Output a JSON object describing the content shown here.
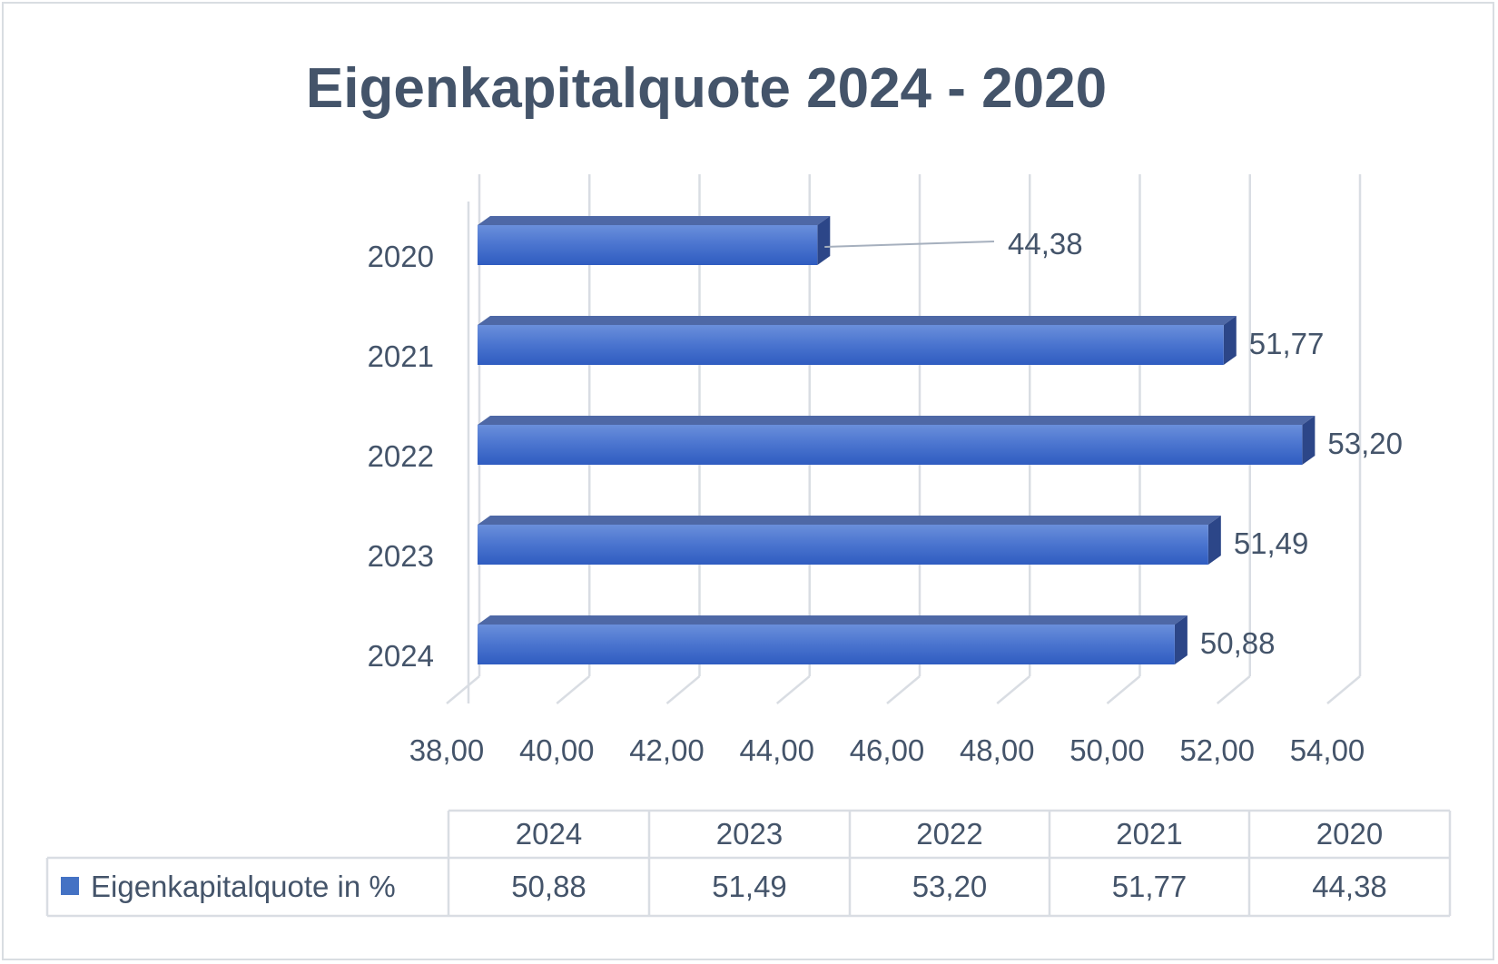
{
  "chart_data": {
    "type": "bar",
    "orientation": "horizontal",
    "style": "3d",
    "title": "Eigenkapitalquote 2024 - 2020",
    "categories": [
      "2020",
      "2021",
      "2022",
      "2023",
      "2024"
    ],
    "series": [
      {
        "name": "Eigenkapitalquote in %",
        "values": [
          44.38,
          51.77,
          53.2,
          51.49,
          50.88
        ],
        "labels": [
          "44,38",
          "51,77",
          "53,20",
          "51,49",
          "50,88"
        ],
        "color": "#4472c4"
      }
    ],
    "xlim": [
      38,
      54
    ],
    "x_ticks": [
      "38,00",
      "40,00",
      "42,00",
      "44,00",
      "46,00",
      "48,00",
      "50,00",
      "52,00",
      "54,00"
    ],
    "grid": true,
    "data_table": {
      "header": [
        "2024",
        "2023",
        "2022",
        "2021",
        "2020"
      ],
      "row_label": "Eigenkapitalquote in %",
      "values": [
        "50,88",
        "51,49",
        "53,20",
        "51,77",
        "44,38"
      ]
    }
  }
}
